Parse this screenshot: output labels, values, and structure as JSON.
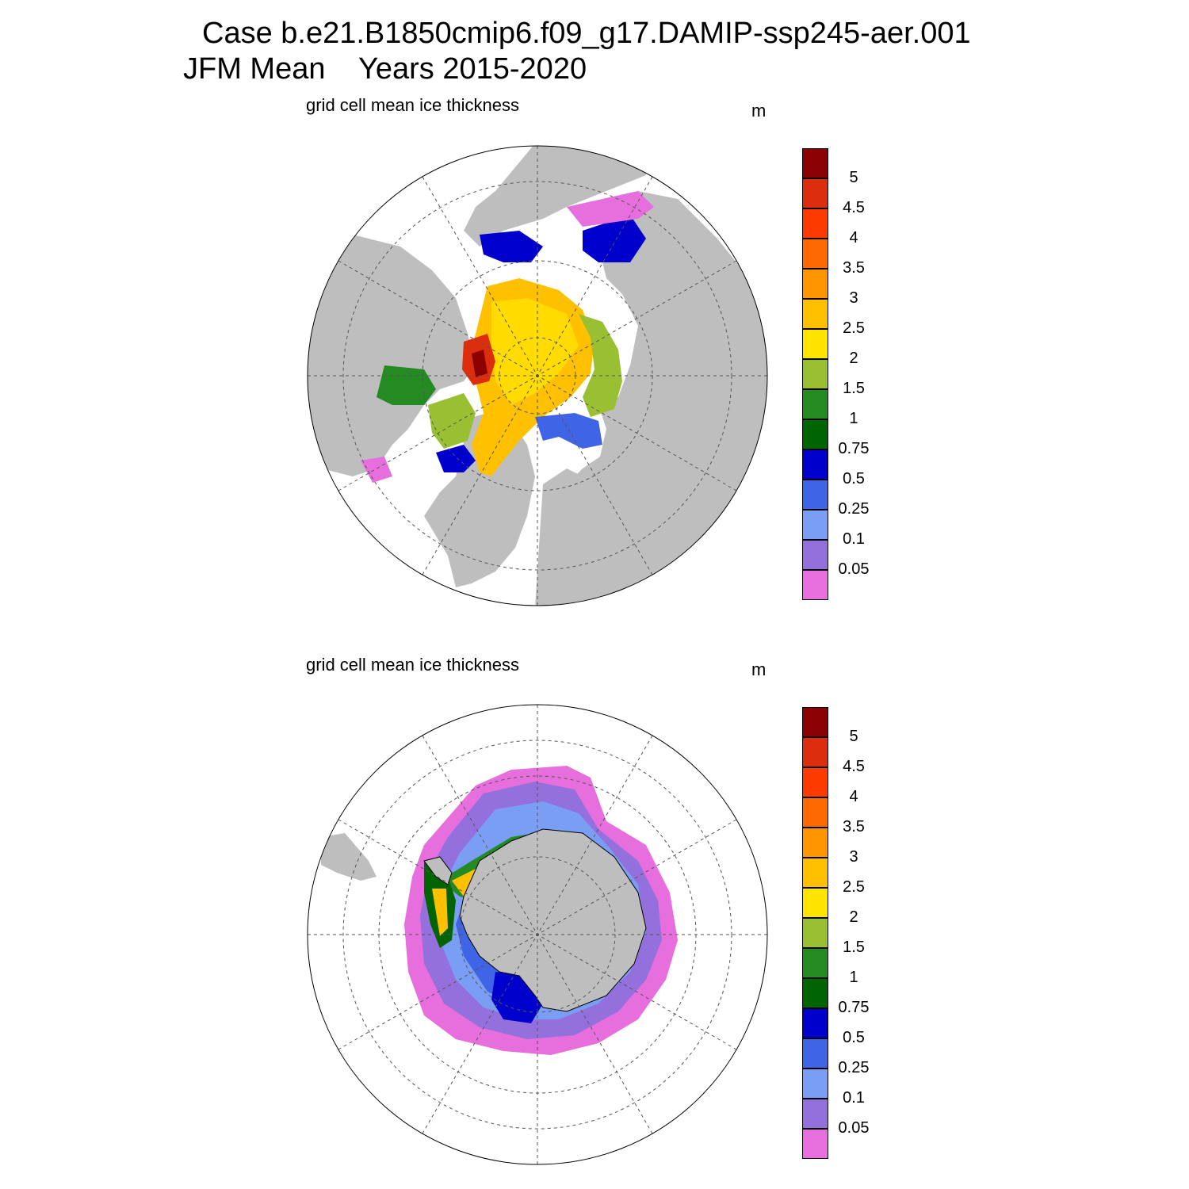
{
  "title_line1": "Case b.e21.B1850cmip6.f09_g17.DAMIP-ssp245-aer.001",
  "title_line2": "JFM Mean    Years 2015-2020",
  "panels": [
    {
      "subtitle": "grid cell mean ice thickness",
      "units": "m"
    },
    {
      "subtitle": "grid cell mean ice thickness",
      "units": "m"
    }
  ],
  "colorbar": {
    "labels": [
      "5",
      "4.5",
      "4",
      "3.5",
      "3",
      "2.5",
      "2",
      "1.5",
      "1",
      "0.75",
      "0.5",
      "0.25",
      "0.1",
      "0.05"
    ],
    "colors": [
      "#8b0000",
      "#dd2d0f",
      "#ff3a00",
      "#ff6a00",
      "#ff9600",
      "#ffc000",
      "#ffe400",
      "#99c032",
      "#238b22",
      "#006400",
      "#0000cd",
      "#3f64e6",
      "#7b9ef5",
      "#9370db",
      "#e66fdd"
    ]
  },
  "colors": {
    "land": "#bebebe",
    "ocean": "#ffffff"
  }
}
